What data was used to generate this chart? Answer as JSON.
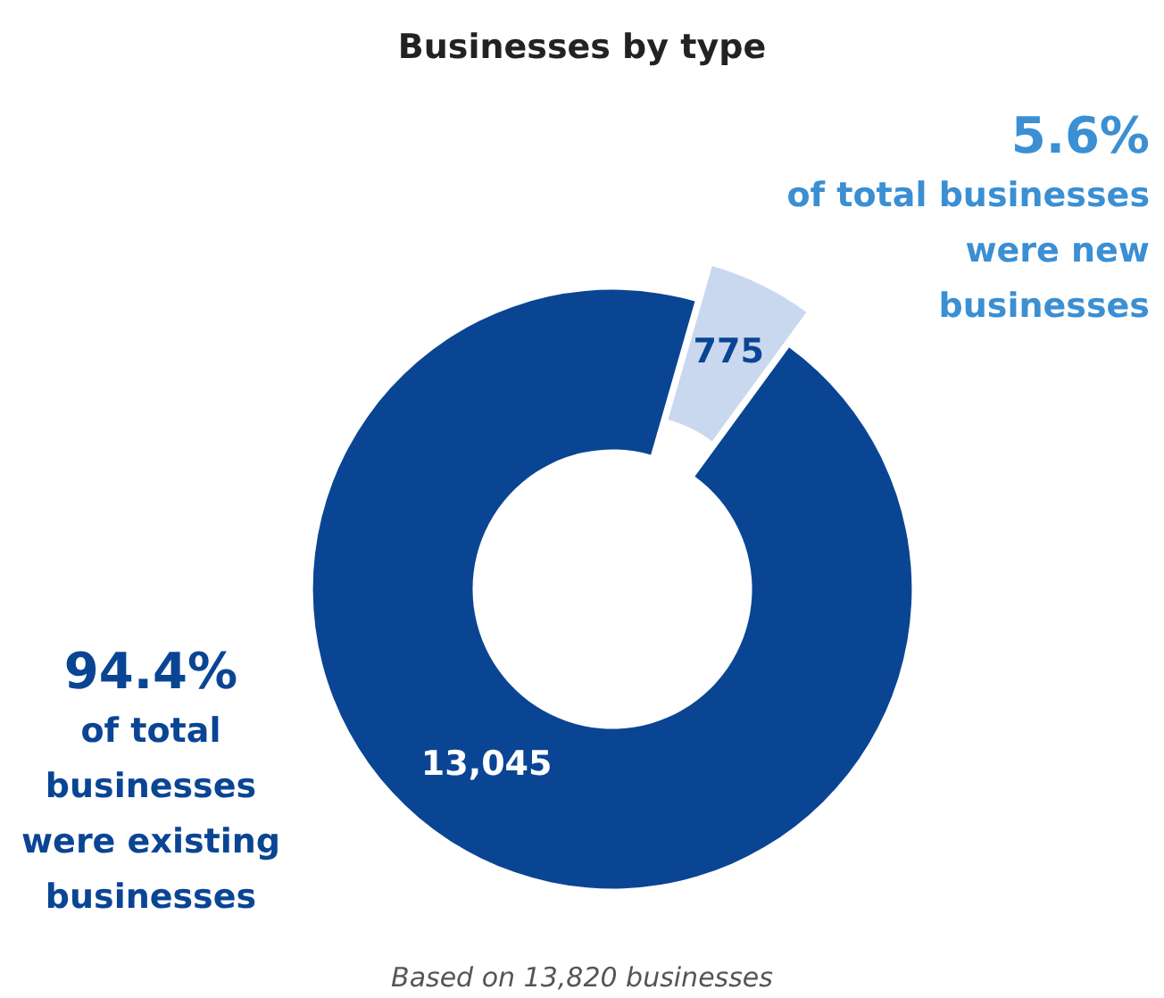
{
  "chart_data": {
    "type": "donut",
    "title": "Businesses by type",
    "categories": [
      null,
      null
    ],
    "values": [
      775,
      13045
    ],
    "value_labels": [
      "775",
      "13,045"
    ],
    "colors": [
      "#c9d8ef",
      "#0a4594"
    ],
    "annotations": [
      "5.6%\nof total businesses\nwere new\nbusinesses",
      "94.4%\nof total\nbusinesses\nwere existing\nbusinesses",
      "Based on 13,820 businesses"
    ]
  }
}
